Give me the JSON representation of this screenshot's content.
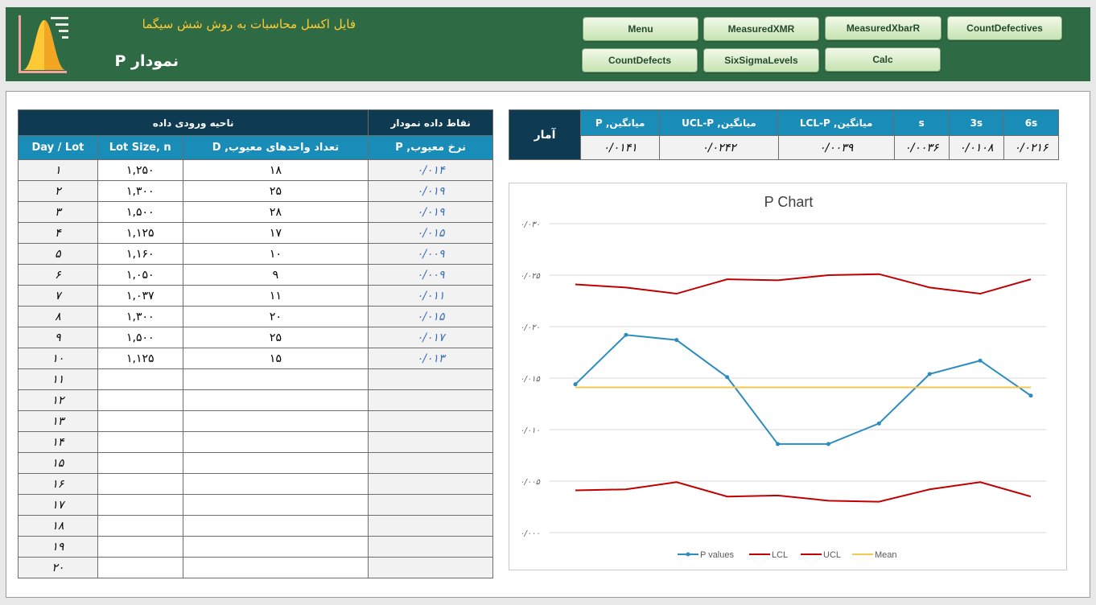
{
  "header": {
    "app_title": "فایل اکسل محاسبات به روش شش سیگما",
    "page_title": "نمودار P",
    "buttons": [
      {
        "name": "menu-button",
        "label": "Menu"
      },
      {
        "name": "measured-xmr-button",
        "label": "MeasuredXMR"
      },
      {
        "name": "measured-xbarr-button",
        "label": "MeasuredXbarR"
      },
      {
        "name": "count-defectives-button",
        "label": "CountDefectives"
      },
      {
        "name": "count-defects-button",
        "label": "CountDefects"
      },
      {
        "name": "six-sigma-levels-button",
        "label": "SixSigmaLevels"
      },
      {
        "name": "calc-button",
        "label": "Calc"
      }
    ]
  },
  "data_table": {
    "group_input": "ناحیه ورودی داده",
    "group_chart": "نقاط داده نمودار",
    "col_day": "Day / Lot",
    "col_lot": "Lot Size, n",
    "col_defect": "تعداد واحدهای معیوب, D",
    "col_rate": "نرخ معیوب, P",
    "rows": [
      {
        "day": "۱",
        "lot": "۱,۲۵۰",
        "defect": "۱۸",
        "rate": "۰/۰۱۴"
      },
      {
        "day": "۲",
        "lot": "۱,۳۰۰",
        "defect": "۲۵",
        "rate": "۰/۰۱۹"
      },
      {
        "day": "۳",
        "lot": "۱,۵۰۰",
        "defect": "۲۸",
        "rate": "۰/۰۱۹"
      },
      {
        "day": "۴",
        "lot": "۱,۱۲۵",
        "defect": "۱۷",
        "rate": "۰/۰۱۵"
      },
      {
        "day": "۵",
        "lot": "۱,۱۶۰",
        "defect": "۱۰",
        "rate": "۰/۰۰۹"
      },
      {
        "day": "۶",
        "lot": "۱,۰۵۰",
        "defect": "۹",
        "rate": "۰/۰۰۹"
      },
      {
        "day": "۷",
        "lot": "۱,۰۳۷",
        "defect": "۱۱",
        "rate": "۰/۰۱۱"
      },
      {
        "day": "۸",
        "lot": "۱,۳۰۰",
        "defect": "۲۰",
        "rate": "۰/۰۱۵"
      },
      {
        "day": "۹",
        "lot": "۱,۵۰۰",
        "defect": "۲۵",
        "rate": "۰/۰۱۷"
      },
      {
        "day": "۱۰",
        "lot": "۱,۱۲۵",
        "defect": "۱۵",
        "rate": "۰/۰۱۳"
      },
      {
        "day": "۱۱",
        "lot": "",
        "defect": "",
        "rate": ""
      },
      {
        "day": "۱۲",
        "lot": "",
        "defect": "",
        "rate": ""
      },
      {
        "day": "۱۳",
        "lot": "",
        "defect": "",
        "rate": ""
      },
      {
        "day": "۱۴",
        "lot": "",
        "defect": "",
        "rate": ""
      },
      {
        "day": "۱۵",
        "lot": "",
        "defect": "",
        "rate": ""
      },
      {
        "day": "۱۶",
        "lot": "",
        "defect": "",
        "rate": ""
      },
      {
        "day": "۱۷",
        "lot": "",
        "defect": "",
        "rate": ""
      },
      {
        "day": "۱۸",
        "lot": "",
        "defect": "",
        "rate": ""
      },
      {
        "day": "۱۹",
        "lot": "",
        "defect": "",
        "rate": ""
      },
      {
        "day": "۲۰",
        "lot": "",
        "defect": "",
        "rate": ""
      }
    ]
  },
  "stats": {
    "label": "آمار",
    "headers": [
      "میانگین, P",
      "میانگین, UCL-P",
      "میانگین, LCL-P",
      "s",
      "3s",
      "6s"
    ],
    "values": [
      "۰/۰۱۴۱",
      "۰/۰۲۴۲",
      "۰/۰۰۳۹",
      "۰/۰۰۳۶",
      "۰/۰۱۰۸",
      "۰/۰۲۱۶"
    ]
  },
  "chart_data": {
    "type": "line",
    "title": "P Chart",
    "x": [
      1,
      2,
      3,
      4,
      5,
      6,
      7,
      8,
      9,
      10
    ],
    "ylim": [
      0,
      0.03
    ],
    "y_ticks": [
      "۰/۰۳۰",
      "۰/۰۲۵",
      "۰/۰۲۰",
      "۰/۰۱۵",
      "۰/۰۱۰",
      "۰/۰۰۵",
      "۰/۰۰۰"
    ],
    "y_tick_values": [
      0.03,
      0.025,
      0.02,
      0.015,
      0.01,
      0.005,
      0.0
    ],
    "grid": true,
    "legend": "bottom",
    "series": [
      {
        "name": "P values",
        "color": "#2b8cbf",
        "marker": true,
        "values": [
          0.0144,
          0.0192,
          0.0187,
          0.0151,
          0.0086,
          0.0086,
          0.0106,
          0.0154,
          0.0167,
          0.0133
        ]
      },
      {
        "name": "LCL",
        "color": "#c00000",
        "marker": false,
        "values": [
          0.0041,
          0.0042,
          0.0049,
          0.0035,
          0.0036,
          0.0031,
          0.003,
          0.0042,
          0.0049,
          0.0035
        ]
      },
      {
        "name": "UCL",
        "color": "#c00000",
        "marker": false,
        "values": [
          0.0241,
          0.0238,
          0.0232,
          0.0246,
          0.0245,
          0.025,
          0.0251,
          0.0238,
          0.0232,
          0.0246
        ]
      },
      {
        "name": "Mean",
        "color": "#f2c94c",
        "marker": false,
        "values": [
          0.0141,
          0.0141,
          0.0141,
          0.0141,
          0.0141,
          0.0141,
          0.0141,
          0.0141,
          0.0141,
          0.0141
        ]
      }
    ]
  }
}
